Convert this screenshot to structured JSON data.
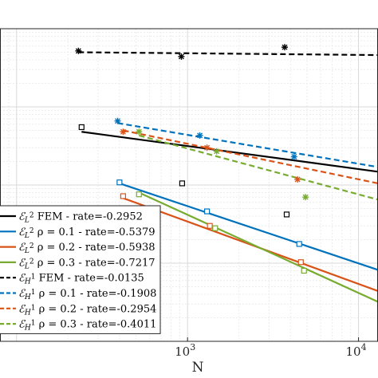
{
  "chart_data": {
    "type": "line",
    "xlabel": "N",
    "ylabel": "",
    "x_scale": "log",
    "y_scale": "log",
    "xlim": [
      80,
      13000
    ],
    "ylim": [
      0.001,
      10
    ],
    "x_ticks": [
      {
        "value": 1000,
        "base": "10",
        "exp": "3"
      },
      {
        "value": 10000,
        "base": "10",
        "exp": "4"
      }
    ],
    "grid": true,
    "legend_position": "bottom-left",
    "series": [
      {
        "name": "FEM - rate=-0.2952",
        "norm": "L",
        "norm_sup": "2",
        "rho": "",
        "color": "#000000",
        "dashed": false,
        "marker": "square",
        "points": [
          [
            240,
            0.55
          ],
          [
            930,
            0.105
          ],
          [
            3800,
            0.042
          ]
        ],
        "fit": [
          [
            240,
            0.48
          ],
          [
            13000,
            0.148
          ]
        ]
      },
      {
        "name": "ρ = 0.1 - rate=-0.5379",
        "norm": "L",
        "norm_sup": "2",
        "rho": "ρ = 0.1",
        "color": "#0072BD",
        "dashed": false,
        "marker": "square",
        "points": [
          [
            400,
            0.108
          ],
          [
            1300,
            0.046
          ],
          [
            4500,
            0.0176
          ]
        ],
        "fit": [
          [
            400,
            0.105
          ],
          [
            13000,
            0.0082
          ]
        ]
      },
      {
        "name": "ρ = 0.2 - rate=-0.5938",
        "norm": "L",
        "norm_sup": "2",
        "rho": "ρ = 0.2",
        "color": "#D95319",
        "dashed": false,
        "marker": "square",
        "points": [
          [
            420,
            0.072
          ],
          [
            1350,
            0.03
          ],
          [
            4600,
            0.0103
          ]
        ],
        "fit": [
          [
            420,
            0.068
          ],
          [
            13000,
            0.0044
          ]
        ]
      },
      {
        "name": "ρ = 0.3 - rate=-0.7217",
        "norm": "L",
        "norm_sup": "2",
        "rho": "ρ = 0.3",
        "color": "#77AC30",
        "dashed": false,
        "marker": "square",
        "points": [
          [
            520,
            0.076
          ],
          [
            1450,
            0.028
          ],
          [
            4800,
            0.008
          ]
        ],
        "fit": [
          [
            520,
            0.08
          ],
          [
            13000,
            0.0032
          ]
        ]
      },
      {
        "name": "FEM - rate=-0.0135",
        "norm": "H",
        "norm_sup": "1",
        "rho": "",
        "color": "#000000",
        "dashed": true,
        "marker": "asterisk",
        "points": [
          [
            230,
            5.2
          ],
          [
            920,
            4.4
          ],
          [
            3700,
            5.8
          ]
        ],
        "fit": [
          [
            230,
            5.0
          ],
          [
            13000,
            4.6
          ]
        ]
      },
      {
        "name": "ρ = 0.1 - rate=-0.1908",
        "norm": "H",
        "norm_sup": "1",
        "rho": "ρ = 0.1",
        "color": "#0072BD",
        "dashed": true,
        "marker": "asterisk",
        "points": [
          [
            390,
            0.66
          ],
          [
            1180,
            0.43
          ],
          [
            4200,
            0.23
          ]
        ],
        "fit": [
          [
            390,
            0.62
          ],
          [
            13000,
            0.17
          ]
        ]
      },
      {
        "name": "ρ = 0.2 - rate=-0.2954",
        "norm": "H",
        "norm_sup": "1",
        "rho": "ρ = 0.2",
        "color": "#D95319",
        "dashed": true,
        "marker": "asterisk",
        "points": [
          [
            420,
            0.48
          ],
          [
            1300,
            0.3
          ],
          [
            4400,
            0.118
          ]
        ],
        "fit": [
          [
            420,
            0.5
          ],
          [
            13000,
            0.105
          ]
        ]
      },
      {
        "name": "ρ = 0.3 - rate=-0.4011",
        "norm": "H",
        "norm_sup": "1",
        "rho": "ρ = 0.3",
        "color": "#77AC30",
        "dashed": true,
        "marker": "asterisk",
        "points": [
          [
            520,
            0.48
          ],
          [
            1480,
            0.27
          ],
          [
            4900,
            0.07
          ]
        ],
        "fit": [
          [
            520,
            0.43
          ],
          [
            13000,
            0.065
          ]
        ]
      }
    ]
  }
}
